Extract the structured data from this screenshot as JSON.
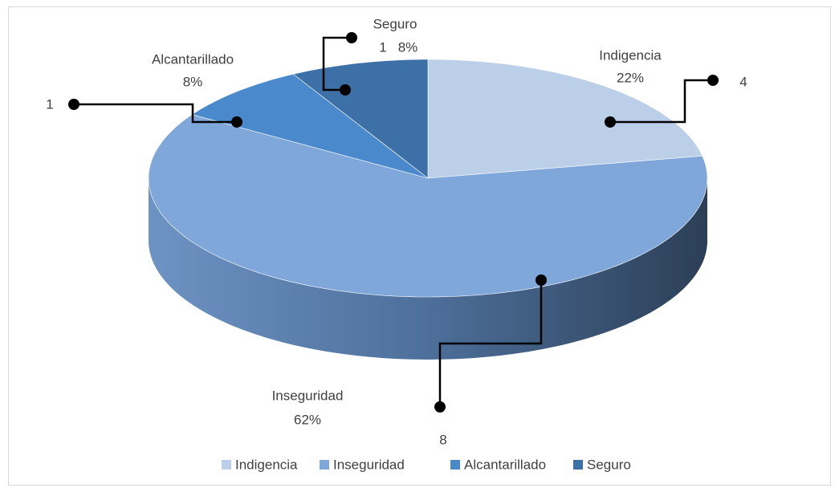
{
  "chart_data": {
    "type": "pie3d",
    "categories": [
      "Indigencia",
      "Inseguridad",
      "Alcantarillado",
      "Seguro"
    ],
    "values": [
      22,
      62,
      8,
      8
    ],
    "value_labels": [
      "22%",
      "62%",
      "8%",
      "8%"
    ],
    "counts": [
      4,
      8,
      1,
      1
    ],
    "colors": [
      "#bccfe9",
      "#7fa7d9",
      "#4a89cc",
      "#3e70a8"
    ],
    "legend": "bottom"
  }
}
